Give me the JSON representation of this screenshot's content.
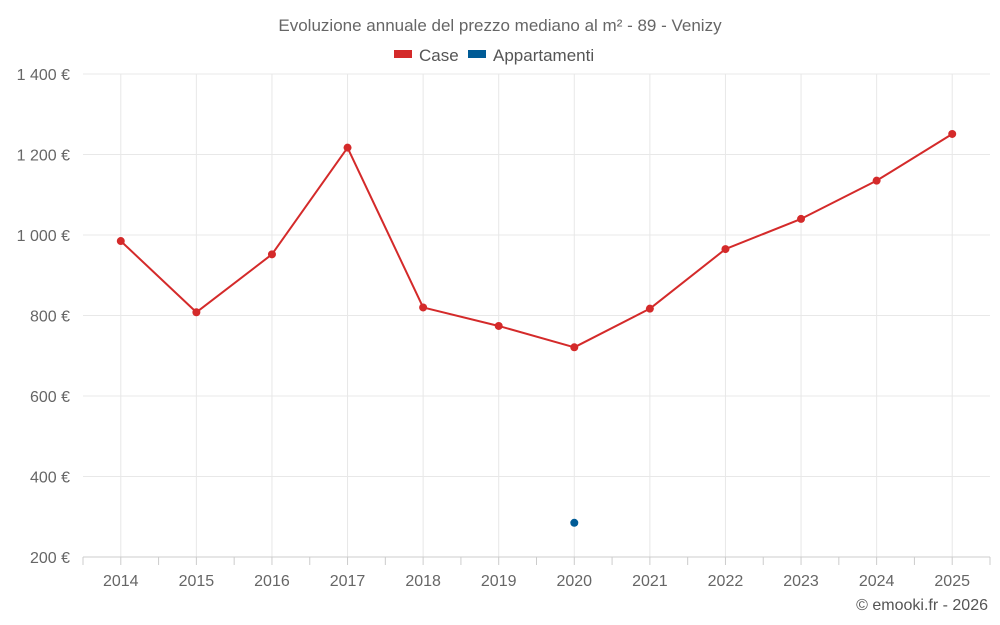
{
  "chart_data": {
    "type": "line",
    "title": "Evoluzione annuale del prezzo mediano al m² - 89 - Venizy",
    "categories": [
      "2014",
      "2015",
      "2016",
      "2017",
      "2018",
      "2019",
      "2020",
      "2021",
      "2022",
      "2023",
      "2024",
      "2025"
    ],
    "y_tick_labels": [
      "200 €",
      "400 €",
      "600 €",
      "800 €",
      "1 000 €",
      "1 200 €",
      "1 400 €"
    ],
    "y_tick_values": [
      200,
      400,
      600,
      800,
      1000,
      1200,
      1400
    ],
    "ylim": [
      200,
      1400
    ],
    "grid": true,
    "legend_position": "top-center",
    "series": [
      {
        "name": "Case",
        "color": "#d42a2a",
        "values": [
          985,
          808,
          952,
          1217,
          820,
          774,
          721,
          817,
          965,
          1040,
          1135,
          1251
        ]
      },
      {
        "name": "Appartamenti",
        "color": "#005b96",
        "values": [
          null,
          null,
          null,
          null,
          null,
          null,
          285,
          null,
          null,
          null,
          null,
          null
        ]
      }
    ]
  },
  "credit": "© emooki.fr - 2026"
}
